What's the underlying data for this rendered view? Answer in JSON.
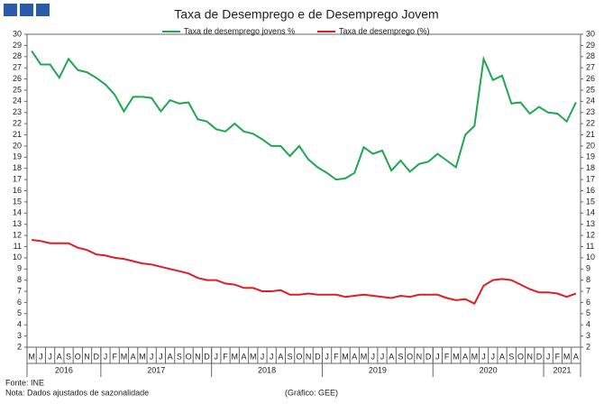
{
  "chart_data": {
    "type": "line",
    "title": "Taxa de Desemprego e de Desemprego Jovem",
    "categories": [
      "M",
      "J",
      "J",
      "A",
      "S",
      "O",
      "N",
      "D",
      "J",
      "F",
      "M",
      "A",
      "M",
      "J",
      "J",
      "A",
      "S",
      "O",
      "N",
      "D",
      "J",
      "F",
      "M",
      "A",
      "M",
      "J",
      "J",
      "A",
      "S",
      "O",
      "N",
      "D",
      "J",
      "F",
      "M",
      "A",
      "M",
      "J",
      "J",
      "A",
      "S",
      "O",
      "N",
      "D",
      "J",
      "F",
      "M",
      "A",
      "M",
      "J",
      "J",
      "A",
      "S",
      "O",
      "N",
      "D",
      "J",
      "F",
      "M",
      "A"
    ],
    "years": [
      "2016",
      "2017",
      "2018",
      "2019",
      "2020",
      "2021"
    ],
    "series": [
      {
        "name": "Taxa de desemprego jovens %",
        "color": "#1fa84f",
        "values": [
          28.5,
          27.3,
          27.3,
          26.1,
          27.8,
          26.8,
          26.6,
          26.1,
          25.5,
          24.6,
          23.1,
          24.4,
          24.4,
          24.3,
          23.1,
          24.1,
          23.8,
          23.9,
          22.4,
          22.2,
          21.5,
          21.3,
          22.0,
          21.3,
          21.1,
          20.6,
          20.0,
          20.0,
          19.1,
          20.0,
          18.8,
          18.1,
          17.6,
          17.0,
          17.1,
          17.6,
          19.9,
          19.3,
          19.6,
          17.8,
          18.7,
          17.7,
          18.4,
          18.6,
          19.3,
          18.7,
          18.1,
          21.0,
          21.8,
          27.8,
          25.9,
          26.3,
          23.8,
          23.9,
          22.9,
          23.5,
          23.0,
          22.9,
          22.2,
          23.9
        ]
      },
      {
        "name": "Taxa de desemprego (%)",
        "color": "#e31b23",
        "values": [
          11.6,
          11.5,
          11.3,
          11.3,
          11.3,
          10.9,
          10.7,
          10.3,
          10.2,
          10.0,
          9.9,
          9.7,
          9.5,
          9.4,
          9.2,
          9.0,
          8.8,
          8.6,
          8.2,
          8.0,
          8.0,
          7.7,
          7.6,
          7.3,
          7.3,
          7.0,
          7.0,
          7.1,
          6.7,
          6.7,
          6.8,
          6.7,
          6.7,
          6.7,
          6.5,
          6.6,
          6.7,
          6.6,
          6.5,
          6.4,
          6.6,
          6.5,
          6.7,
          6.7,
          6.7,
          6.4,
          6.2,
          6.3,
          5.9,
          7.5,
          8.0,
          8.1,
          8.0,
          7.6,
          7.2,
          6.9,
          6.9,
          6.8,
          6.5,
          6.8
        ]
      }
    ],
    "ylim": [
      2,
      30
    ],
    "yticks": [
      2,
      3,
      4,
      5,
      6,
      7,
      8,
      9,
      10,
      11,
      12,
      13,
      14,
      15,
      16,
      17,
      18,
      19,
      20,
      21,
      22,
      23,
      24,
      25,
      26,
      27,
      28,
      29,
      30
    ],
    "y2lim": [
      2,
      30
    ],
    "y2ticks": [
      2,
      3,
      4,
      5,
      6,
      7,
      8,
      9,
      10,
      11,
      12,
      13,
      14,
      15,
      16,
      17,
      18,
      19,
      20,
      21,
      22,
      23,
      24,
      25,
      26,
      27,
      28,
      29,
      30
    ],
    "source": "Fonte: INE",
    "note": "Nota: Dados ajustados de sazonalidade",
    "credit": "(Gráfico: GEE)"
  }
}
